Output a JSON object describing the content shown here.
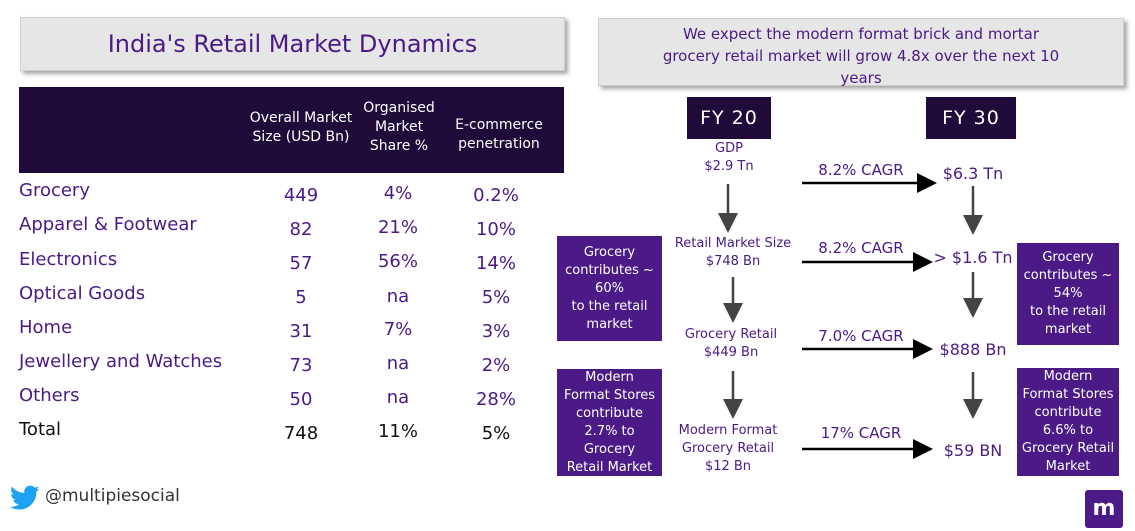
{
  "title": "India's Retail Market Dynamics",
  "table": {
    "headers": [
      "Overall Market Size (USD Bn)",
      "Organised Market Share %",
      "E-commerce penetration"
    ],
    "header_lines": [
      [
        "Overall Market",
        "Size (USD Bn)"
      ],
      [
        "Organised",
        "Market",
        "Share %"
      ],
      [
        "E-commerce",
        "penetration"
      ]
    ],
    "rows": [
      {
        "category": "Grocery",
        "size": "449",
        "organised": "4%",
        "ecom": "0.2%"
      },
      {
        "category": "Apparel & Footwear",
        "size": "82",
        "organised": "21%",
        "ecom": "10%"
      },
      {
        "category": "Electronics",
        "size": "57",
        "organised": "56%",
        "ecom": "14%"
      },
      {
        "category": "Optical Goods",
        "size": "5",
        "organised": "na",
        "ecom": "5%"
      },
      {
        "category": "Home",
        "size": "31",
        "organised": "7%",
        "ecom": "3%"
      },
      {
        "category": "Jewellery and Watches",
        "size": "73",
        "organised": "na",
        "ecom": "2%"
      },
      {
        "category": "Others",
        "size": "50",
        "organised": "na",
        "ecom": "28%"
      },
      {
        "category": "Total",
        "size": "748",
        "organised": "11%",
        "ecom": "5%"
      }
    ]
  },
  "headline": {
    "lines": [
      "We expect the modern format brick and mortar",
      "grocery retail market will grow 4.8x over the next 10",
      "years"
    ]
  },
  "flow": {
    "fy20": "FY  20",
    "fy30": "FY  30",
    "gdp_label": "GDP",
    "gdp_value": "$2.9 Tn",
    "retail_label": "Retail Market Size",
    "retail_value": "$748 Bn",
    "grocery_label": "Grocery Retail",
    "grocery_value": "$449 Bn",
    "modern_label_1": "Modern Format",
    "modern_label_2": "Grocery Retail",
    "modern_value": "$12 Bn",
    "cagr_1": "8.2% CAGR",
    "cagr_2": "8.2% CAGR",
    "cagr_3": "7.0% CAGR",
    "cagr_4": "17% CAGR",
    "fy30_gdp": "$6.3 Tn",
    "fy30_retail": "> $1.6 Tn",
    "fy30_grocery": "$888 Bn",
    "fy30_modern": "$59 BN",
    "box_left_1": [
      "Grocery",
      "contributes ~",
      "60%",
      "to the retail",
      "market"
    ],
    "box_left_2": [
      "Modern",
      "Format Stores",
      "contribute",
      "2.7% to Grocery",
      "Retail Market"
    ],
    "box_right_1": [
      "Grocery",
      "contributes ~",
      "54%",
      "to the retail",
      "market"
    ],
    "box_right_2": [
      "Modern",
      "Format Stores",
      "contribute",
      "6.6% to",
      "Grocery Retail",
      "Market"
    ]
  },
  "footer": {
    "handle": "@multipiesocial",
    "twitter_icon": "twitter-bird-icon",
    "logo_icon": "multipie-logo-icon",
    "logo_letter": "m"
  },
  "colors": {
    "accent": "#4b1a86",
    "dark_header": "#1f0a3a",
    "panel_gray": "#e6e6e6",
    "twitter_blue": "#1da1f2"
  }
}
